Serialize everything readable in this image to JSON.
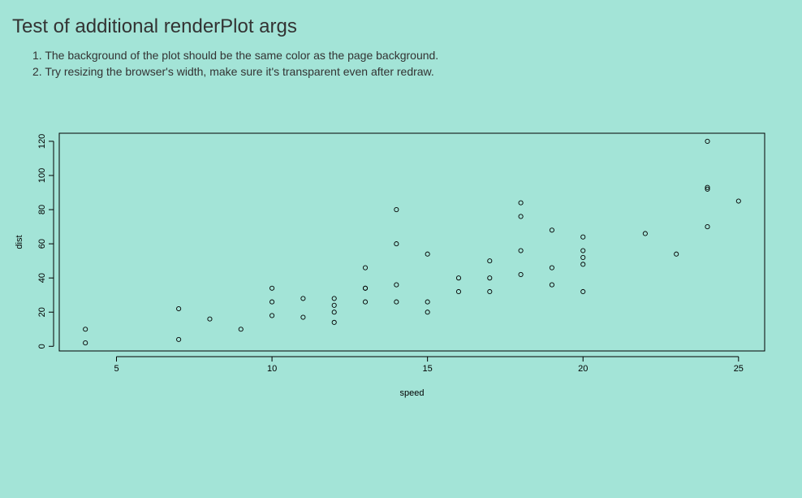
{
  "page": {
    "title": "Test of additional renderPlot args",
    "instructions": [
      "1. The background of the plot should be the same color as the page background.",
      "2. Try resizing the browser's width, make sure it's transparent even after redraw."
    ]
  },
  "colors": {
    "background": "#a3e4d7",
    "text": "#333333",
    "plot_ink": "#000000"
  },
  "chart_data": {
    "type": "scatter",
    "title": "",
    "xlabel": "speed",
    "ylabel": "dist",
    "xlim": [
      3.16,
      25.84
    ],
    "ylim": [
      -2.72,
      124.72
    ],
    "xticks": [
      5,
      10,
      15,
      20,
      25
    ],
    "yticks": [
      0,
      20,
      40,
      60,
      80,
      100,
      120
    ],
    "grid": false,
    "legend": "none",
    "points": [
      {
        "x": 4,
        "y": 2
      },
      {
        "x": 4,
        "y": 10
      },
      {
        "x": 7,
        "y": 4
      },
      {
        "x": 7,
        "y": 22
      },
      {
        "x": 8,
        "y": 16
      },
      {
        "x": 9,
        "y": 10
      },
      {
        "x": 10,
        "y": 18
      },
      {
        "x": 10,
        "y": 26
      },
      {
        "x": 10,
        "y": 34
      },
      {
        "x": 11,
        "y": 17
      },
      {
        "x": 11,
        "y": 28
      },
      {
        "x": 12,
        "y": 14
      },
      {
        "x": 12,
        "y": 20
      },
      {
        "x": 12,
        "y": 24
      },
      {
        "x": 12,
        "y": 28
      },
      {
        "x": 13,
        "y": 26
      },
      {
        "x": 13,
        "y": 34
      },
      {
        "x": 13,
        "y": 34
      },
      {
        "x": 13,
        "y": 46
      },
      {
        "x": 14,
        "y": 26
      },
      {
        "x": 14,
        "y": 36
      },
      {
        "x": 14,
        "y": 60
      },
      {
        "x": 14,
        "y": 80
      },
      {
        "x": 15,
        "y": 20
      },
      {
        "x": 15,
        "y": 26
      },
      {
        "x": 15,
        "y": 54
      },
      {
        "x": 16,
        "y": 32
      },
      {
        "x": 16,
        "y": 40
      },
      {
        "x": 17,
        "y": 32
      },
      {
        "x": 17,
        "y": 40
      },
      {
        "x": 17,
        "y": 50
      },
      {
        "x": 18,
        "y": 42
      },
      {
        "x": 18,
        "y": 56
      },
      {
        "x": 18,
        "y": 76
      },
      {
        "x": 18,
        "y": 84
      },
      {
        "x": 19,
        "y": 36
      },
      {
        "x": 19,
        "y": 46
      },
      {
        "x": 19,
        "y": 68
      },
      {
        "x": 20,
        "y": 32
      },
      {
        "x": 20,
        "y": 48
      },
      {
        "x": 20,
        "y": 52
      },
      {
        "x": 20,
        "y": 56
      },
      {
        "x": 20,
        "y": 64
      },
      {
        "x": 22,
        "y": 66
      },
      {
        "x": 23,
        "y": 54
      },
      {
        "x": 24,
        "y": 70
      },
      {
        "x": 24,
        "y": 92
      },
      {
        "x": 24,
        "y": 93
      },
      {
        "x": 24,
        "y": 120
      },
      {
        "x": 25,
        "y": 85
      }
    ]
  }
}
